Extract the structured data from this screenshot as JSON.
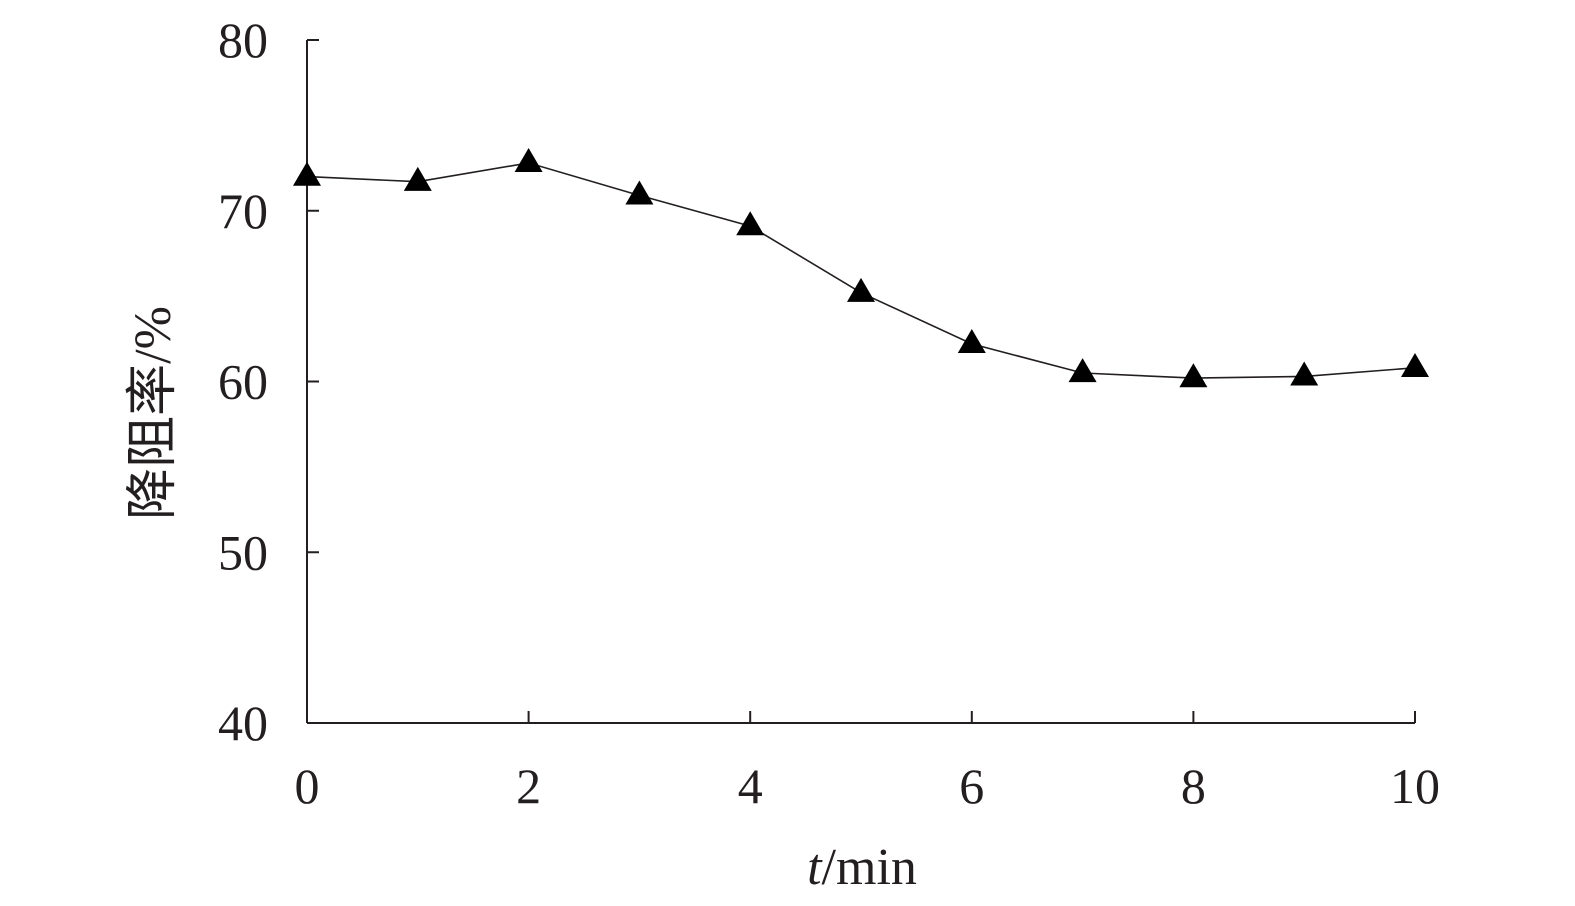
{
  "chart_data": {
    "type": "line",
    "xlabel_var": "t",
    "xlabel_unit": "/min",
    "ylabel": "降阻率/%",
    "xlim": [
      0,
      10
    ],
    "ylim": [
      40,
      80
    ],
    "x_ticks": [
      0,
      2,
      4,
      6,
      8,
      10
    ],
    "y_ticks": [
      40,
      50,
      60,
      70,
      80
    ],
    "grid": false,
    "marker": "filled-triangle",
    "series": [
      {
        "x": [
          0,
          1,
          2,
          3,
          4,
          5,
          6,
          7,
          8,
          9,
          10
        ],
        "y": [
          72.0,
          71.7,
          72.8,
          70.9,
          69.1,
          65.2,
          62.2,
          60.5,
          60.2,
          60.3,
          60.8
        ]
      }
    ],
    "colors": {
      "line": "#231f20",
      "marker": "#000000",
      "axis": "#231f20",
      "text": "#231f20"
    }
  }
}
